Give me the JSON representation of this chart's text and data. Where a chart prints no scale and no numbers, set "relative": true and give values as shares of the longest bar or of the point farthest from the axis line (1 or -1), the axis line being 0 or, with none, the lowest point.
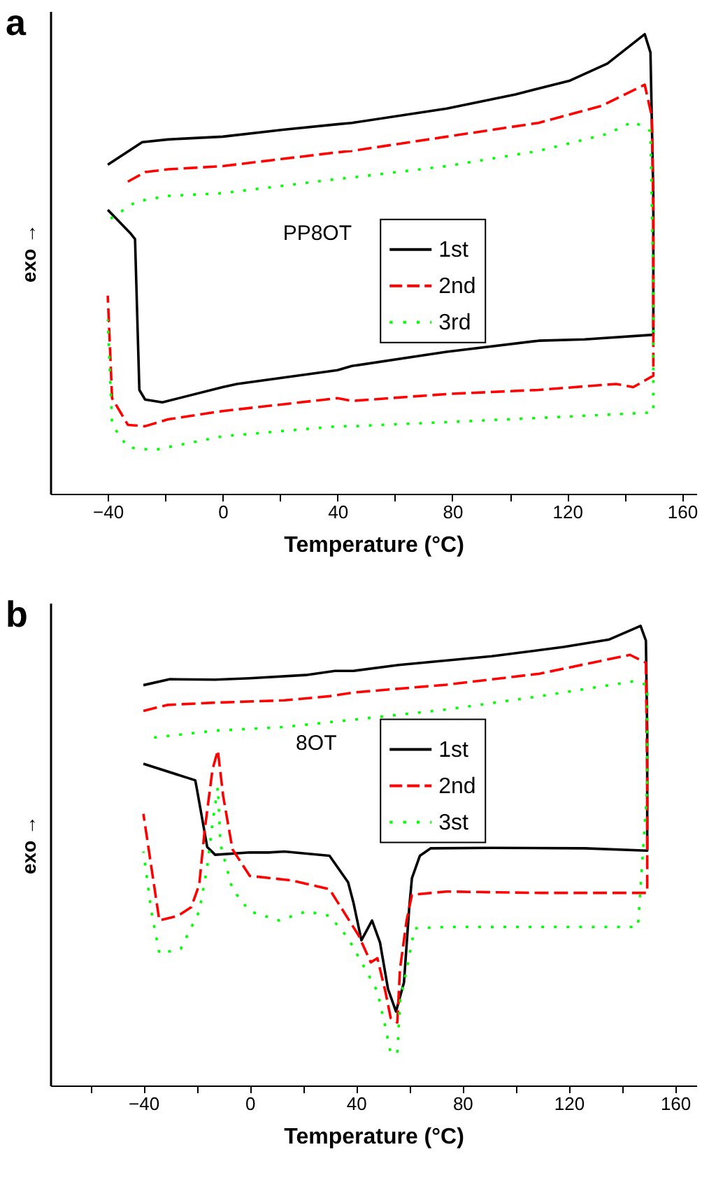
{
  "chart_data": [
    {
      "type": "line",
      "title": "a",
      "xlabel": "Temperature (°C)",
      "ylabel": "exo →",
      "relative": true,
      "tick_labels": "x",
      "legend": "right",
      "xlim": [
        -60,
        165
      ],
      "xticks": [
        -40,
        {
          "value": -20,
          "label": null
        },
        0,
        {
          "value": 20,
          "label": null
        },
        40,
        {
          "value": 60,
          "label": null
        },
        80,
        {
          "value": 100,
          "label": null
        },
        120,
        {
          "value": 140,
          "label": null
        },
        160
      ],
      "annotations": [
        "PP8OT"
      ],
      "series": [
        {
          "name": "1st",
          "color": "#000000",
          "line_style": "solid",
          "x": [
            -40,
            -28,
            -19,
            0,
            21,
            40,
            45,
            78,
            102,
            121,
            134,
            147,
            149,
            150,
            150,
            126,
            110,
            78,
            45,
            40,
            5,
            0,
            -21,
            -27,
            -29,
            -30.5,
            -32,
            -40
          ],
          "values": [
            0.716,
            0.765,
            0.771,
            0.777,
            0.792,
            0.804,
            0.807,
            0.838,
            0.869,
            0.899,
            0.936,
            1,
            0.96,
            0.645,
            0.346,
            0.336,
            0.333,
            0.309,
            0.278,
            0.269,
            0.239,
            0.232,
            0.199,
            0.205,
            0.226,
            0.554,
            0.566,
            0.618
          ]
        },
        {
          "name": "2nd",
          "color": "#ff0000",
          "line_style": "dashed",
          "x": [
            -33,
            -27,
            -19,
            0,
            40,
            45,
            78,
            110,
            132,
            147,
            149.5,
            150,
            150,
            143,
            137,
            110,
            78,
            45,
            40,
            0,
            -19,
            -27,
            -33,
            -38.5,
            -40
          ],
          "values": [
            0.679,
            0.7,
            0.706,
            0.713,
            0.743,
            0.746,
            0.777,
            0.807,
            0.844,
            0.89,
            0.82,
            0.615,
            0.257,
            0.232,
            0.239,
            0.226,
            0.217,
            0.202,
            0.208,
            0.18,
            0.162,
            0.147,
            0.15,
            0.208,
            0.431
          ]
        },
        {
          "name": "3rd",
          "color": "#00ff00",
          "line_style": "dotted",
          "x": [
            -39,
            -30,
            -19,
            0,
            40,
            45,
            78,
            110,
            134,
            143,
            149,
            150,
            150,
            110,
            78,
            45,
            40,
            0,
            -24,
            -33,
            -38.5,
            -40
          ],
          "values": [
            0.599,
            0.636,
            0.648,
            0.654,
            0.685,
            0.688,
            0.713,
            0.746,
            0.783,
            0.81,
            0.789,
            0.453,
            0.177,
            0.165,
            0.156,
            0.147,
            0.147,
            0.125,
            0.095,
            0.101,
            0.15,
            0.379
          ]
        }
      ]
    },
    {
      "type": "line",
      "title": "b",
      "xlabel": "Temperature (°C)",
      "ylabel": "exo →",
      "relative": true,
      "tick_labels": "x",
      "legend": "right",
      "xlim": [
        -75,
        168
      ],
      "xticks": [
        {
          "value": -60,
          "label": null
        },
        -40,
        {
          "value": -20,
          "label": null
        },
        0,
        {
          "value": 20,
          "label": null
        },
        40,
        {
          "value": 60,
          "label": null
        },
        80,
        {
          "value": 100,
          "label": null
        },
        120,
        {
          "value": 140,
          "label": null
        },
        160
      ],
      "annotations": [
        "8OT"
      ],
      "series": [
        {
          "name": "1st",
          "color": "#000000",
          "line_style": "solid",
          "x": [
            -40,
            -30,
            -13,
            0,
            21,
            32,
            39,
            56,
            91,
            118,
            135,
            147,
            149,
            149.5,
            149.5,
            126,
            91,
            68,
            64,
            61,
            60,
            58,
            55,
            52,
            49,
            46,
            42,
            39,
            37,
            30,
            13,
            7,
            0,
            -13,
            -16,
            -20,
            -20.5,
            -40
          ],
          "values": [
            0.871,
            0.884,
            0.883,
            0.886,
            0.893,
            0.902,
            0.902,
            0.915,
            0.934,
            0.954,
            0.97,
            1,
            0.968,
            0.765,
            0.511,
            0.516,
            0.517,
            0.516,
            0.5,
            0.451,
            0.388,
            0.224,
            0.161,
            0.21,
            0.311,
            0.359,
            0.316,
            0.398,
            0.442,
            0.5,
            0.509,
            0.507,
            0.507,
            0.502,
            0.519,
            0.649,
            0.664,
            0.7
          ]
        },
        {
          "name": "2nd",
          "color": "#ff0000",
          "line_style": "dashed",
          "x": [
            -40,
            -31,
            -13,
            13,
            30,
            39,
            74,
            109,
            143,
            149,
            149.5,
            149.5,
            109,
            74,
            61,
            59,
            56.5,
            55.5,
            53,
            51,
            48,
            45.5,
            41,
            30,
            16,
            0,
            -6.5,
            -10,
            -12,
            -14,
            -17,
            -19,
            -22,
            -27,
            -34,
            -40
          ],
          "values": [
            0.815,
            0.828,
            0.833,
            0.838,
            0.847,
            0.855,
            0.872,
            0.896,
            0.937,
            0.92,
            0.669,
            0.419,
            0.419,
            0.422,
            0.415,
            0.359,
            0.253,
            0.137,
            0.147,
            0.205,
            0.277,
            0.268,
            0.326,
            0.427,
            0.446,
            0.456,
            0.514,
            0.63,
            0.729,
            0.688,
            0.553,
            0.437,
            0.388,
            0.369,
            0.359,
            0.591
          ]
        },
        {
          "name": "3st",
          "color": "#00ff00",
          "line_style": "dotted",
          "x": [
            -36,
            -13,
            13,
            44,
            74,
            109,
            144,
            149.5,
            149.5,
            146,
            109,
            74,
            62,
            60,
            56.5,
            55.5,
            53,
            51,
            48,
            42.5,
            37,
            30,
            21.5,
            11,
            0,
            -6.5,
            -11,
            -12,
            -14,
            -16,
            -19,
            -26,
            -34,
            -37,
            -40
          ],
          "values": [
            0.757,
            0.772,
            0.78,
            0.799,
            0.818,
            0.847,
            0.879,
            0.872,
            0.649,
            0.345,
            0.345,
            0.345,
            0.342,
            0.282,
            0.181,
            0.07,
            0.07,
            0.128,
            0.205,
            0.263,
            0.321,
            0.369,
            0.379,
            0.359,
            0.379,
            0.427,
            0.524,
            0.649,
            0.572,
            0.475,
            0.379,
            0.297,
            0.287,
            0.379,
            0.509
          ]
        }
      ]
    }
  ]
}
